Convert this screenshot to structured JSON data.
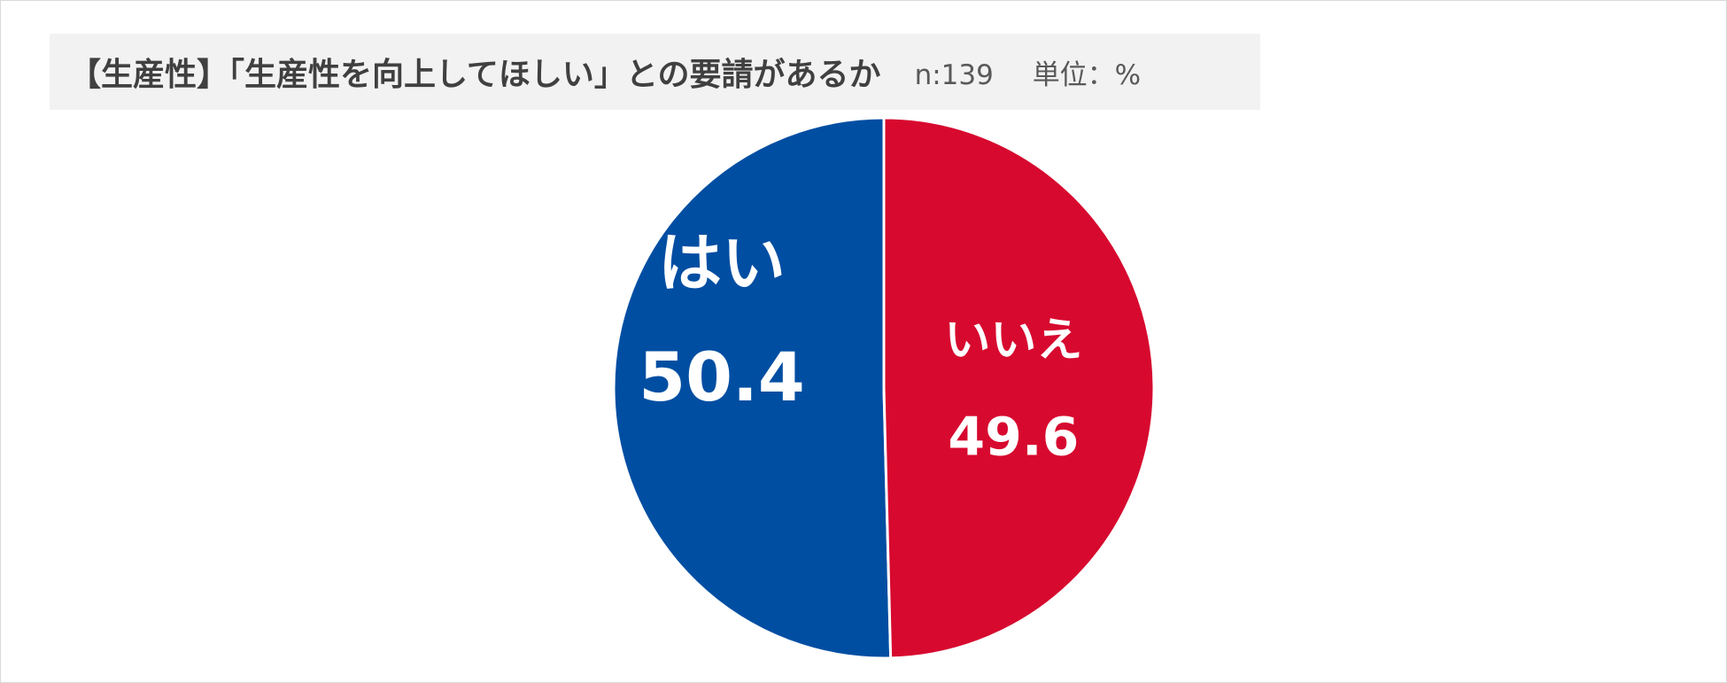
{
  "chart": {
    "title": "【生産性】「生産性を向上してほしい」との要請があるか",
    "sample_size": "n:139",
    "unit": "単位：%"
  },
  "chart_data": {
    "type": "pie",
    "title": "【生産性】「生産性を向上してほしい」との要請があるか",
    "categories": [
      "はい",
      "いいえ"
    ],
    "values": [
      50.4,
      49.6
    ],
    "colors": [
      "#004ea2",
      "#d7092f"
    ],
    "value_labels": [
      "50.4",
      "49.6"
    ]
  }
}
